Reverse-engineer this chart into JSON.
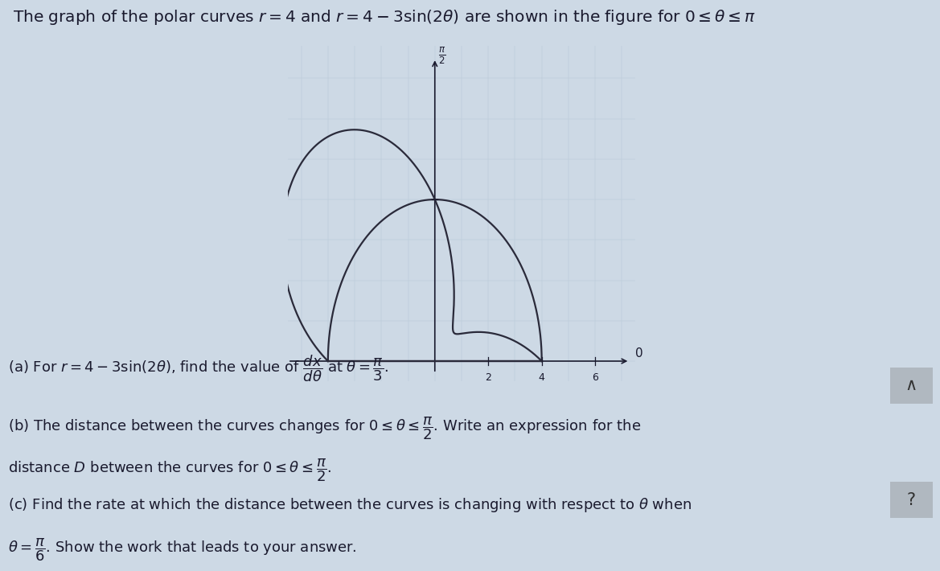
{
  "title_text": "The graph of the polar curves $r=4$ and $r=4-3\\sin(2\\theta)$ are shown in the figure for $0 \\leq \\theta \\leq \\pi$",
  "title_fontsize": 14.5,
  "bg_color": "#cdd9e5",
  "plot_bg_color": "#d4dfe8",
  "grid_color": "#b8c8d8",
  "text_color": "#1a1a2e",
  "curve_color": "#2a2a3a",
  "curve_lw": 1.6,
  "r_ticks": [
    2,
    4,
    6
  ],
  "part_a": "(a) For $r=4-3\\sin(2\\theta)$, find the value of $\\dfrac{dx}{d\\theta}$ at $\\theta=\\dfrac{\\pi}{3}$.",
  "part_b1": "(b) The distance between the curves changes for $0 \\leq \\theta \\leq \\dfrac{\\pi}{2}$. Write an expression for the",
  "part_b2": "distance $D$ between the curves for $0 \\leq \\theta \\leq \\dfrac{\\pi}{2}$.",
  "part_c1": "(c) Find the rate at which the distance between the curves is changing with respect to $\\theta$ when",
  "part_c2": "$\\theta = \\dfrac{\\pi}{6}$. Show the work that leads to your answer.",
  "text_fontsize": 13.0
}
